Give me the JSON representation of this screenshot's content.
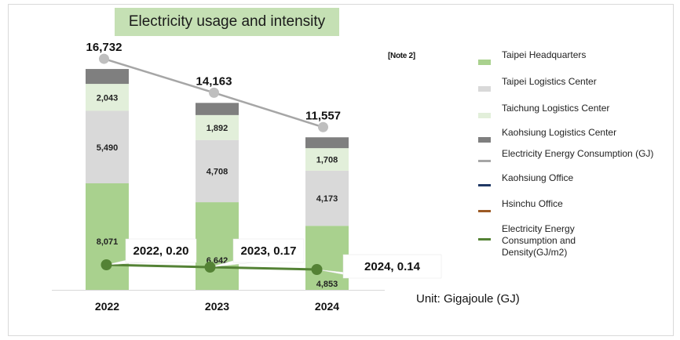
{
  "title": "Electricity usage and intensity",
  "note": "[Note 2]",
  "unit": "Unit: Gigajoule (GJ)",
  "colors": {
    "taipei_hq": "#a9d18e",
    "taipei_logistics": "#d9d9d9",
    "taichung_logistics": "#e2efda",
    "kaohsiung_logistics": "#7f7f7f",
    "total_line": "#a6a6a6",
    "kaohsiung_office": "#203864",
    "hsinchu_office": "#9c5a24",
    "density_line": "#548235"
  },
  "legend": [
    {
      "label": "Taipei Headquarters",
      "kind": "box",
      "color_key": "taipei_hq"
    },
    {
      "label": "Taipei Logistics Center",
      "kind": "box",
      "color_key": "taipei_logistics"
    },
    {
      "label": "Taichung Logistics Center",
      "kind": "box",
      "color_key": "taichung_logistics"
    },
    {
      "label": "Kaohsiung Logistics Center",
      "kind": "box",
      "color_key": "kaohsiung_logistics"
    },
    {
      "label": "Electricity Energy Consumption (GJ)",
      "kind": "line",
      "color_key": "total_line"
    },
    {
      "label": "Kaohsiung Office",
      "kind": "line",
      "color_key": "kaohsiung_office"
    },
    {
      "label": "Hsinchu Office",
      "kind": "line",
      "color_key": "hsinchu_office"
    },
    {
      "label": "Electricity Energy Consumption and Density(GJ/m2)",
      "kind": "line",
      "color_key": "density_line"
    }
  ],
  "chart_data": {
    "type": "bar",
    "stacked": true,
    "title": "Electricity usage and intensity",
    "xlabel": "",
    "ylabel": "",
    "unit": "Gigajoule (GJ)",
    "categories": [
      "2022",
      "2023",
      "2024"
    ],
    "series": [
      {
        "name": "Taipei Headquarters",
        "type": "bar",
        "values": [
          8071,
          6642,
          4853
        ],
        "labels": [
          "8,071",
          "6,642",
          "4,853"
        ]
      },
      {
        "name": "Taipei Logistics Center",
        "type": "bar",
        "values": [
          5490,
          4708,
          4173
        ],
        "labels": [
          "5,490",
          "4,708",
          "4,173"
        ]
      },
      {
        "name": "Taichung Logistics Center",
        "type": "bar",
        "values": [
          2043,
          1892,
          1708
        ],
        "labels": [
          "2,043",
          "1,892",
          "1,708"
        ]
      },
      {
        "name": "Kaohsiung Logistics Center",
        "type": "bar",
        "values": null,
        "labels": null
      },
      {
        "name": "Electricity Energy Consumption (GJ)",
        "type": "line",
        "values": [
          16732,
          14163,
          11557
        ],
        "labels": [
          "16,732",
          "14,163",
          "11,557"
        ]
      },
      {
        "name": "Electricity Energy Consumption and Density(GJ/m2)",
        "type": "line",
        "secondary_axis": true,
        "values": [
          0.2,
          0.17,
          0.14
        ],
        "labels": [
          "2022,  0.20",
          "2023,  0.17",
          "2024,  0.14"
        ]
      }
    ],
    "legend_position": "right",
    "grid": false
  }
}
